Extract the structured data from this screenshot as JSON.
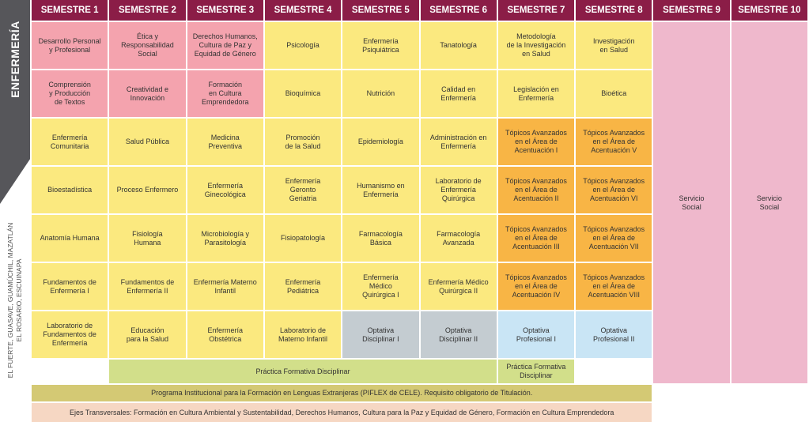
{
  "sidebar": {
    "title": "ENFERMERÍA",
    "campuses": "EL FUERTE, GUASAVE, GUAMÚCHIL, MAZATLÁN\nEL ROSARIO, ESCUINAPA"
  },
  "headers": [
    "SEMESTRE 1",
    "SEMESTRE 2",
    "SEMESTRE 3",
    "SEMESTRE 4",
    "SEMESTRE 5",
    "SEMESTRE 6",
    "SEMESTRE 7",
    "SEMESTRE 8",
    "SEMESTRE 9",
    "SEMESTRE 10"
  ],
  "rows": [
    [
      "Desarrollo Personal\ny Profesional",
      "Ética y\nResponsabilidad\nSocial",
      "Derechos Humanos,\nCultura de Paz y\nEquidad de Género",
      "Psicología",
      "Enfermería\nPsiquiátrica",
      "Tanatología",
      "Metodología\nde la Investigación\nen Salud",
      "Investigación\nen Salud"
    ],
    [
      "Comprensión\ny Producción\nde Textos",
      "Creatividad e\nInnovación",
      "Formación\nen Cultura\nEmprendedora",
      "Bioquímica",
      "Nutrición",
      "Calidad en\nEnfermería",
      "Legislación en\nEnfermería",
      "Bioética"
    ],
    [
      "Enfermería\nComunitaria",
      "Salud Pública",
      "Medicina\nPreventiva",
      "Promoción\nde la Salud",
      "Epidemiología",
      "Administración en\nEnfermería",
      "Tópicos Avanzados\nen el Área de\nAcentuación I",
      "Tópicos Avanzados\nen el Área de\nAcentuación V"
    ],
    [
      "Bioestadística",
      "Proceso Enfermero",
      "Enfermería\nGinecológica",
      "Enfermería\nGeronto\nGeriatria",
      "Humanismo en\nEnfermería",
      "Laboratorio de\nEnfermería\nQuirúrgica",
      "Tópicos Avanzados\nen el Área de\nAcentuación II",
      "Tópicos Avanzados\nen el Área de\nAcentuación VI"
    ],
    [
      "Anatomía Humana",
      "Fisiología\nHumana",
      "Microbiología y\nParasitología",
      "Fisiopatología",
      "Farmacología\nBásica",
      "Farmacología\nAvanzada",
      "Tópicos Avanzados\nen el Área de\nAcentuación III",
      "Tópicos Avanzados\nen el Área de\nAcentuación VII"
    ],
    [
      "Fundamentos de\nEnfermería I",
      "Fundamentos de\nEnfermería II",
      "Enfermería Materno\nInfantil",
      "Enfermería\nPediátrica",
      "Enfermería\nMédico\nQuirúrgica I",
      "Enfermería Médico\nQuirúrgica II",
      "Tópicos Avanzados\nen el Área de\nAcentuación IV",
      "Tópicos Avanzados\nen el Área de\nAcentuación VIII"
    ],
    [
      "Laboratorio de\nFundamentos de\nEnfermería",
      "Educación\npara la Salud",
      "Enfermería\nObstétrica",
      "Laboratorio de\nMaterno Infantil",
      "Optativa\nDisciplinar I",
      "Optativa\nDisciplinar II",
      "Optativa\nProfesional I",
      "Optativa\nProfesional II"
    ]
  ],
  "servicio_social": [
    "Servicio\nSocial",
    "Servicio\nSocial"
  ],
  "practica": {
    "disciplinar": "Práctica Formativa Disciplinar",
    "disciplinar_7": "Práctica Formativa\nDisciplinar"
  },
  "programa_idiomas": "Programa Institucional para la Formación en Lenguas Extranjeras (PIFLEX de CELE). Requisito obligatorio de Titulación.",
  "ejes_transversales": "Ejes Transversales: Formación en Cultura Ambiental y Sustentabilidad, Derechos Humanos, Cultura para la Paz y Equidad de Género, Formación en Cultura Emprendedora",
  "colors": {
    "header": "#8b1d47",
    "socio": "#f4a3ae",
    "basic": "#fbe97f",
    "acentuacion": "#f8b545",
    "optativa_disciplinar": "#c4ccd1",
    "optativa_profesional": "#c9e5f5",
    "practica": "#d2df8a",
    "servicio_social": "#efb8cc"
  }
}
